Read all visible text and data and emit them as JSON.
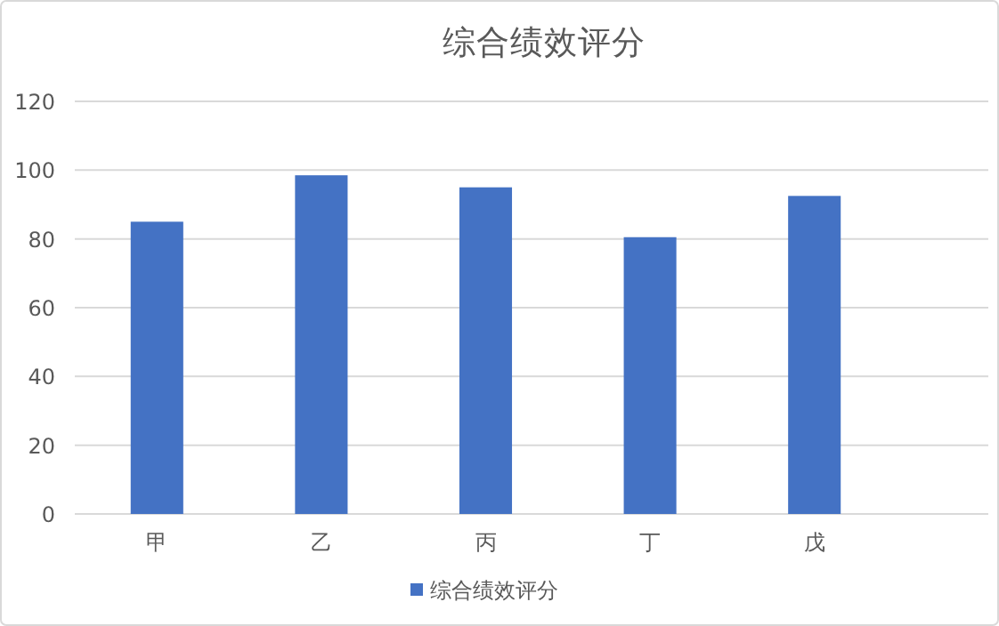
{
  "chart_data": {
    "type": "bar",
    "title": "综合绩效评分",
    "categories": [
      "甲",
      "乙",
      "丙",
      "丁",
      "戊"
    ],
    "series": [
      {
        "name": "综合绩效评分",
        "color": "#4472c4",
        "values": [
          85,
          98.5,
          95,
          80.5,
          92.5
        ]
      }
    ],
    "ylim": [
      0,
      120
    ],
    "yticks": [
      0,
      20,
      40,
      60,
      80,
      100,
      120
    ],
    "grid": "y",
    "legend": "bottom"
  }
}
